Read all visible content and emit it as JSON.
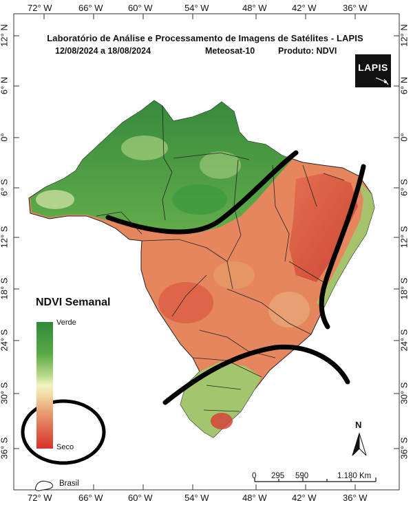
{
  "header": {
    "title": "Laboratório de Análise e Processamento de Imagens de Satélites - LAPIS",
    "period": "12/08/2024  a  18/08/2024",
    "satellite": "Meteosat-10",
    "product": "Produto: NDVI"
  },
  "logo": {
    "text": "LAPIS"
  },
  "grid": {
    "longitude_labels": [
      "72° W",
      "66° W",
      "60° W",
      "54° W",
      "48° W",
      "42° W",
      "36° W"
    ],
    "latitude_labels": [
      "12° N",
      "6° N",
      "0°",
      "6° S",
      "12° S",
      "18° S",
      "24° S",
      "30° S",
      "36° S"
    ]
  },
  "legend": {
    "title": "NDVI Semanal",
    "high_label": "Verde",
    "low_label": "Seco",
    "boundary_label": "Brasil",
    "colors": {
      "high": "#2e8b3a",
      "mid": "#f3f3c4",
      "low": "#d7302a"
    }
  },
  "north_arrow": {
    "label": "N"
  },
  "scale_bar": {
    "ticks": [
      "0",
      "295",
      "590",
      "1.180 Km"
    ]
  },
  "annotations": {
    "description": "Hand-drawn black marker lines and a circle around the dry end of the legend",
    "stroke_color": "#000000"
  }
}
